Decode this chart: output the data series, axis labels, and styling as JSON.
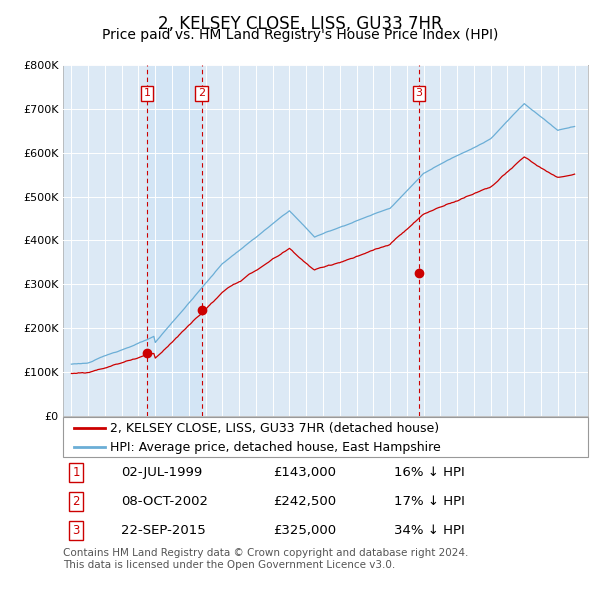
{
  "title": "2, KELSEY CLOSE, LISS, GU33 7HR",
  "subtitle": "Price paid vs. HM Land Registry's House Price Index (HPI)",
  "title_fontsize": 12,
  "subtitle_fontsize": 10,
  "legend_line1": "2, KELSEY CLOSE, LISS, GU33 7HR (detached house)",
  "legend_line2": "HPI: Average price, detached house, East Hampshire",
  "sale_info": [
    {
      "label": "1",
      "date": "02-JUL-1999",
      "price": "£143,000",
      "note": "16% ↓ HPI"
    },
    {
      "label": "2",
      "date": "08-OCT-2002",
      "price": "£242,500",
      "note": "17% ↓ HPI"
    },
    {
      "label": "3",
      "date": "22-SEP-2015",
      "price": "£325,000",
      "note": "34% ↓ HPI"
    }
  ],
  "sale_years_numeric": [
    1999.5,
    2002.77,
    2015.73
  ],
  "sale_prices": [
    143000,
    242500,
    325000
  ],
  "shade_region": [
    1999.5,
    2002.77
  ],
  "footer1": "Contains HM Land Registry data © Crown copyright and database right 2024.",
  "footer2": "This data is licensed under the Open Government Licence v3.0.",
  "hpi_color": "#6baed6",
  "price_color": "#cc0000",
  "marker_color": "#cc0000",
  "vline_color": "#cc0000",
  "box_color": "#cc0000",
  "grid_color": "#cccccc",
  "bg_color": "#dce9f5",
  "shade_color": "#d0e4f5",
  "ylim_min": 0,
  "ylim_max": 800000,
  "legend_fontsize": 9,
  "table_fontsize": 9.5,
  "footer_fontsize": 7.5
}
